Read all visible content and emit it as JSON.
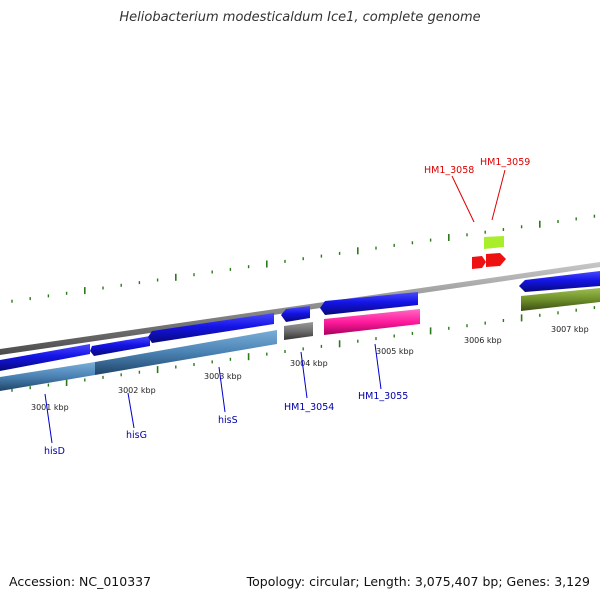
{
  "title": "Heliobacterium modesticaldum Ice1, complete genome",
  "footer": {
    "accession": "Accession: NC_010337",
    "topology": "Topology: circular; Length: 3,075,407 bp; Genes: 3,129"
  },
  "colors": {
    "forward_gene": "#1414e6",
    "reverse_gene_steel": "#4a82b4",
    "reverse_gene_gray": "#6e6e6e",
    "reverse_gene_pink": "#ff1a9c",
    "forward_gene_olive": "#6f8f2a",
    "rna_red": "#ee1111",
    "rna_lime": "#a8ee2a",
    "tick_green": "#2a7a1a",
    "backbone": "#8c8c8c",
    "label_blue": "#0000aa",
    "label_red": "#dd0000"
  },
  "tick_labels": [
    "3001 kbp",
    "3002 kbp",
    "3003 kbp",
    "3004 kbp",
    "3005 kbp",
    "3006 kbp",
    "3007 kbp"
  ],
  "genes": {
    "hisD": "hisD",
    "hisG": "hisG",
    "hisS": "hisS",
    "HM1_3054": "HM1_3054",
    "HM1_3055": "HM1_3055",
    "HM1_3058": "HM1_3058",
    "HM1_3059": "HM1_3059"
  }
}
